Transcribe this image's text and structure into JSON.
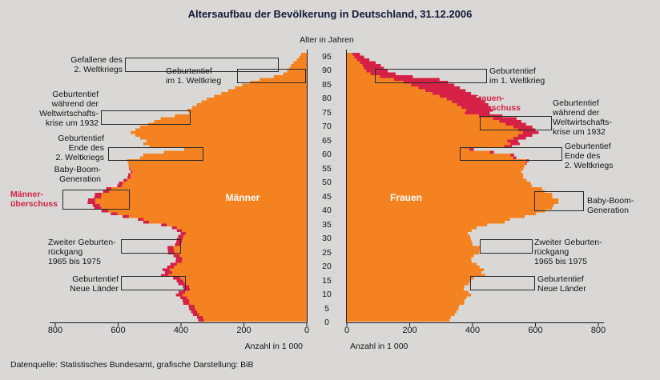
{
  "title": "Altersaufbau der Bevölkerung in Deutschland, 31.12.2006",
  "source_note": "Datenquelle: Statistisches Bundesamt, grafische Darstellung: BiB",
  "colors": {
    "background": "#d9d8d6",
    "bar_orange": "#f58220",
    "surplus_red": "#d42145",
    "text_dark": "#141414",
    "title_dark": "#141a38",
    "axis": "#1a1a1a"
  },
  "legend": {
    "men": "Männer",
    "women": "Frauen"
  },
  "axis": {
    "age_label": "Alter in Jahren",
    "x_label": "Anzahl in 1 000",
    "x_ticks": [
      0,
      200,
      400,
      600,
      800
    ],
    "x_max": 800,
    "age_ticks": [
      0,
      5,
      10,
      15,
      20,
      25,
      30,
      35,
      40,
      45,
      50,
      55,
      60,
      65,
      70,
      75,
      80,
      85,
      90,
      95
    ]
  },
  "annotations": [
    {
      "id": "gefallene-ww2-left",
      "text": "Gefallene des\n2. Weltkriegs"
    },
    {
      "id": "geburtentief-ww1-left",
      "text": "Geburtentief\nim 1. Weltkrieg"
    },
    {
      "id": "weltwirtschaftskrise-left",
      "text": "Geburtentief\nwährend der\nWeltwirtschafts-\nkrise um 1932"
    },
    {
      "id": "ende-ww2-left",
      "text": "Geburtentief\nEnde des\n2. Weltkriegs"
    },
    {
      "id": "baby-boom-left",
      "text": "Baby-Boom-\nGeneration"
    },
    {
      "id": "maennerueberschuss",
      "text": "Männer-\nüberschuss"
    },
    {
      "id": "zweiter-geburtenrueckgang-left",
      "text": "Zweiter Geburten-\nrückgang\n1965 bis 1975"
    },
    {
      "id": "neue-laender-left",
      "text": "Geburtentief\nNeue Länder"
    },
    {
      "id": "geburtentief-ww1-right",
      "text": "Geburtentief\nim 1. Weltkrieg"
    },
    {
      "id": "frauenueberschuss",
      "text": "Frauen-\nüberschuss"
    },
    {
      "id": "weltwirtschaftskrise-right",
      "text": "Geburtentief\nwährend der\nWeltwirtschafts-\nkrise um 1932"
    },
    {
      "id": "ende-ww2-right",
      "text": "Geburtentief\nEnde des\n2. Weltkriegs"
    },
    {
      "id": "baby-boom-right",
      "text": "Baby-Boom-\nGeneration"
    },
    {
      "id": "zweiter-geburtenrueckgang-right",
      "text": "Zweiter Geburten-\nrückgang\n1965 bis 1975"
    },
    {
      "id": "neue-laender-right",
      "text": "Geburtentief\nNeue Länder"
    }
  ],
  "chart_data": {
    "type": "bar",
    "variant": "population-pyramid",
    "title": "Altersaufbau der Bevölkerung in Deutschland, 31.12.2006",
    "xlabel": "Anzahl in 1 000",
    "ylabel": "Alter in Jahren",
    "x_range_per_side": [
      0,
      800
    ],
    "age_range": [
      0,
      95
    ],
    "legend_position": "inside-bars",
    "grid": false,
    "surplus_encoding": "Red bar tips mark surplus of one sex over the other at that age (Männerüberschuss left, Frauenüberschuss right)",
    "ages": [
      0,
      1,
      2,
      3,
      4,
      5,
      6,
      7,
      8,
      9,
      10,
      11,
      12,
      13,
      14,
      15,
      16,
      17,
      18,
      19,
      20,
      21,
      22,
      23,
      24,
      25,
      26,
      27,
      28,
      29,
      30,
      31,
      32,
      33,
      34,
      35,
      36,
      37,
      38,
      39,
      40,
      41,
      42,
      43,
      44,
      45,
      46,
      47,
      48,
      49,
      50,
      51,
      52,
      53,
      54,
      55,
      56,
      57,
      58,
      59,
      60,
      61,
      62,
      63,
      64,
      65,
      66,
      67,
      68,
      69,
      70,
      71,
      72,
      73,
      74,
      75,
      76,
      77,
      78,
      79,
      80,
      81,
      82,
      83,
      84,
      85,
      86,
      87,
      88,
      89,
      90,
      91,
      92,
      93,
      94,
      95
    ],
    "series": [
      {
        "name": "Männer",
        "side": "left",
        "values": [
          345,
          349,
          362,
          368,
          374,
          376,
          393,
          395,
          402,
          416,
          408,
          392,
          394,
          409,
          414,
          425,
          464,
          451,
          459,
          444,
          434,
          417,
          416,
          424,
          441,
          442,
          443,
          419,
          415,
          413,
          409,
          401,
          413,
          429,
          463,
          520,
          537,
          586,
          623,
          653,
          676,
          681,
          697,
          696,
          676,
          674,
          648,
          638,
          603,
          598,
          583,
          570,
          568,
          560,
          565,
          566,
          568,
          572,
          530,
          520,
          455,
          390,
          500,
          520,
          510,
          530,
          545,
          560,
          545,
          530,
          505,
          485,
          465,
          420,
          375,
          380,
          365,
          350,
          335,
          318,
          295,
          272,
          250,
          228,
          205,
          180,
          150,
          105,
          75,
          62,
          55,
          50,
          42,
          32,
          24,
          18
        ]
      },
      {
        "name": "Frauen",
        "side": "right",
        "values": [
          327,
          331,
          343,
          349,
          355,
          357,
          373,
          374,
          381,
          395,
          387,
          372,
          374,
          388,
          393,
          403,
          440,
          428,
          436,
          422,
          413,
          397,
          396,
          404,
          421,
          422,
          424,
          400,
          397,
          395,
          392,
          385,
          397,
          413,
          446,
          502,
          519,
          566,
          602,
          631,
          653,
          658,
          673,
          673,
          654,
          653,
          629,
          621,
          588,
          585,
          572,
          561,
          561,
          555,
          562,
          565,
          572,
          579,
          539,
          532,
          468,
          404,
          525,
          550,
          545,
          570,
          590,
          610,
          600,
          590,
          570,
          555,
          540,
          495,
          455,
          465,
          458,
          450,
          440,
          428,
          412,
          395,
          378,
          360,
          342,
          322,
          295,
          210,
          155,
          130,
          118,
          108,
          92,
          72,
          55,
          42
        ]
      }
    ]
  }
}
